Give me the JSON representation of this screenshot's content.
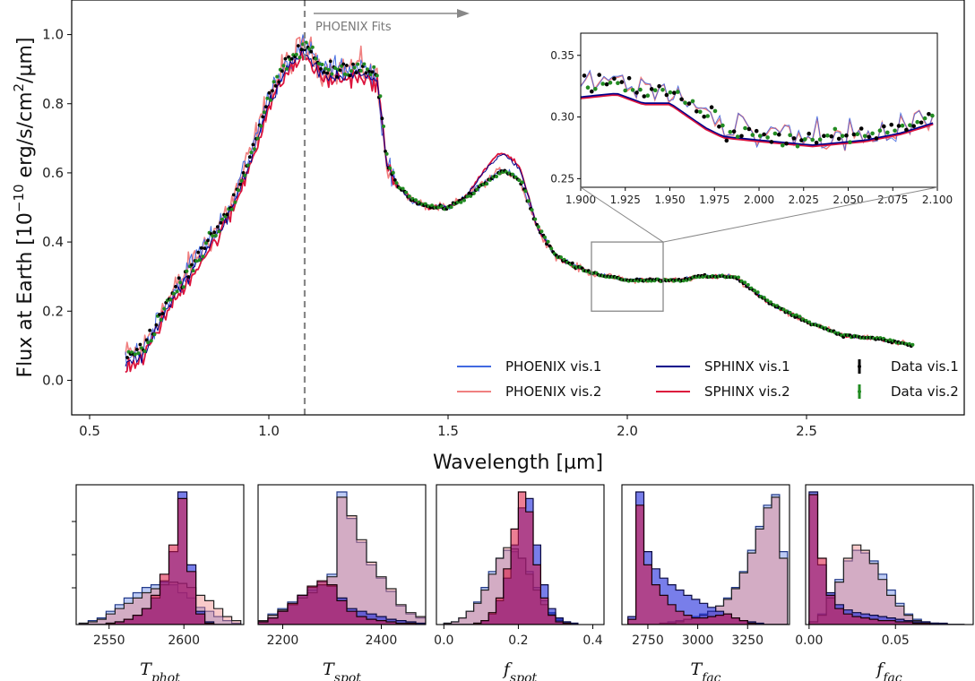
{
  "chart_data": [
    {
      "type": "line",
      "xlabel": "Wavelength [µm]",
      "ylabel_parts": [
        "Flux at Earth [10",
        "−10",
        " erg/s/cm",
        "2",
        "/µm]"
      ],
      "xlim": [
        0.45,
        2.94
      ],
      "ylim": [
        -0.1,
        1.1
      ],
      "xticks": [
        0.5,
        1.0,
        1.5,
        2.0,
        2.5
      ],
      "xtick_labels": [
        "0.5",
        "1.0",
        "1.5",
        "2.0",
        "2.5"
      ],
      "yticks": [
        0.0,
        0.2,
        0.4,
        0.6,
        0.8,
        1.0
      ],
      "ytick_labels": [
        "0.0",
        "0.2",
        "0.4",
        "0.6",
        "0.8",
        "1.0"
      ],
      "annotation": {
        "text": "PHOENIX Fits",
        "x": 1.1
      },
      "legend_position": "lower-right",
      "grid": false,
      "series": [
        {
          "name": "PHOENIX vis.1",
          "color": "#4169e1",
          "style": "line"
        },
        {
          "name": "PHOENIX vis.2",
          "color": "#f08080",
          "style": "line"
        },
        {
          "name": "SPHINX vis.1",
          "color": "#00008b",
          "style": "line"
        },
        {
          "name": "SPHINX vis.2",
          "color": "#dc143c",
          "style": "line"
        },
        {
          "name": "Data vis.1",
          "color": "#000000",
          "style": "errorbar"
        },
        {
          "name": "Data vis.2",
          "color": "#228b22",
          "style": "errorbar"
        }
      ],
      "spectrum_x": [
        0.6,
        0.65,
        0.7,
        0.75,
        0.8,
        0.85,
        0.9,
        0.95,
        1.0,
        1.05,
        1.1,
        1.15,
        1.2,
        1.25,
        1.3,
        1.33,
        1.36,
        1.4,
        1.45,
        1.5,
        1.55,
        1.6,
        1.65,
        1.7,
        1.75,
        1.8,
        1.85,
        1.9,
        1.95,
        2.0,
        2.05,
        2.1,
        2.15,
        2.2,
        2.25,
        2.3,
        2.4,
        2.5,
        2.6,
        2.7,
        2.8
      ],
      "spectrum_y": [
        0.07,
        0.09,
        0.2,
        0.28,
        0.36,
        0.43,
        0.52,
        0.66,
        0.82,
        0.92,
        0.97,
        0.9,
        0.9,
        0.91,
        0.88,
        0.62,
        0.56,
        0.52,
        0.5,
        0.5,
        0.53,
        0.57,
        0.61,
        0.58,
        0.44,
        0.36,
        0.33,
        0.31,
        0.3,
        0.29,
        0.29,
        0.29,
        0.29,
        0.3,
        0.3,
        0.3,
        0.22,
        0.17,
        0.13,
        0.12,
        0.1
      ],
      "inset": {
        "xlim": [
          1.9,
          2.1
        ],
        "ylim": [
          0.243,
          0.368
        ],
        "xticks": [
          1.9,
          1.925,
          1.95,
          1.975,
          2.0,
          2.025,
          2.05,
          2.075,
          2.1
        ],
        "xtick_labels": [
          "1.900",
          "1.925",
          "1.950",
          "1.975",
          "2.000",
          "2.025",
          "2.050",
          "2.075",
          "2.100"
        ],
        "yticks": [
          0.25,
          0.3,
          0.35
        ],
        "ytick_labels": [
          "0.25",
          "0.30",
          "0.35"
        ],
        "sphinx_x": [
          1.9,
          1.92,
          1.935,
          1.95,
          1.97,
          1.98,
          2.0,
          2.03,
          2.06,
          2.08,
          2.1
        ],
        "sphinx_y": [
          0.315,
          0.318,
          0.31,
          0.31,
          0.29,
          0.283,
          0.28,
          0.276,
          0.28,
          0.286,
          0.295
        ]
      }
    },
    {
      "type": "histogram",
      "panels": [
        {
          "xlabel_base": "T",
          "xlabel_sub": "phot",
          "xlim": [
            2528,
            2640
          ],
          "xticks": [
            2550,
            2600
          ],
          "xtick_labels": [
            "2550",
            "2600"
          ],
          "bins": [
            2530,
            2536,
            2542,
            2548,
            2554,
            2560,
            2566,
            2572,
            2578,
            2584,
            2590,
            2596,
            2602,
            2608,
            2614,
            2620,
            2626,
            2632,
            2638
          ],
          "series": [
            {
              "name": "PHOENIX vis.1",
              "counts": [
                0.01,
                0.03,
                0.05,
                0.1,
                0.15,
                0.2,
                0.24,
                0.28,
                0.3,
                0.32,
                0.3,
                0.24,
                0.2,
                0.13,
                0.1,
                0.06,
                0.03,
                0.01
              ]
            },
            {
              "name": "PHOENIX vis.2",
              "counts": [
                0.01,
                0.02,
                0.04,
                0.08,
                0.12,
                0.16,
                0.2,
                0.24,
                0.27,
                0.3,
                0.32,
                0.31,
                0.28,
                0.22,
                0.18,
                0.12,
                0.06,
                0.03
              ]
            },
            {
              "name": "SPHINX vis.1",
              "counts": [
                0,
                0,
                0,
                0.01,
                0.02,
                0.04,
                0.07,
                0.12,
                0.2,
                0.33,
                0.55,
                1.0,
                0.45,
                0.1,
                0.02,
                0,
                0,
                0
              ]
            },
            {
              "name": "SPHINX vis.2",
              "counts": [
                0,
                0,
                0,
                0.01,
                0.02,
                0.04,
                0.07,
                0.12,
                0.22,
                0.38,
                0.6,
                0.95,
                0.4,
                0.08,
                0.01,
                0,
                0,
                0
              ]
            }
          ]
        },
        {
          "xlabel_base": "T",
          "xlabel_sub": "spot",
          "xlim": [
            2150,
            2490
          ],
          "xticks": [
            2200,
            2400
          ],
          "xtick_labels": [
            "2200",
            "2400"
          ],
          "bins": [
            2150,
            2170,
            2190,
            2210,
            2230,
            2250,
            2270,
            2290,
            2310,
            2330,
            2350,
            2370,
            2390,
            2410,
            2430,
            2450,
            2470,
            2490
          ],
          "series": [
            {
              "name": "PHOENIX vis.1",
              "counts": [
                0.03,
                0.08,
                0.12,
                0.17,
                0.22,
                0.26,
                0.32,
                0.38,
                1.0,
                0.8,
                0.62,
                0.45,
                0.35,
                0.25,
                0.14,
                0.08,
                0.05
              ]
            },
            {
              "name": "PHOENIX vis.2",
              "counts": [
                0.03,
                0.07,
                0.11,
                0.15,
                0.2,
                0.24,
                0.3,
                0.36,
                0.96,
                0.82,
                0.64,
                0.47,
                0.36,
                0.27,
                0.15,
                0.09,
                0.06
              ]
            },
            {
              "name": "SPHINX vis.1",
              "counts": [
                0.02,
                0.05,
                0.1,
                0.15,
                0.22,
                0.28,
                0.3,
                0.29,
                0.2,
                0.12,
                0.1,
                0.08,
                0.06,
                0.04,
                0.03,
                0.02,
                0.01
              ]
            },
            {
              "name": "SPHINX vis.2",
              "counts": [
                0.02,
                0.05,
                0.1,
                0.16,
                0.22,
                0.29,
                0.33,
                0.3,
                0.18,
                0.1,
                0.06,
                0.04,
                0.03,
                0.02,
                0.01,
                0.01,
                0
              ]
            }
          ]
        },
        {
          "xlabel_base": "f",
          "xlabel_sub": "spot",
          "xlim": [
            -0.02,
            0.43
          ],
          "xticks": [
            0.0,
            0.2,
            0.4
          ],
          "xtick_labels": [
            "0.0",
            "0.2",
            "0.4"
          ],
          "bins": [
            0.0,
            0.02,
            0.04,
            0.06,
            0.08,
            0.1,
            0.12,
            0.14,
            0.16,
            0.18,
            0.2,
            0.22,
            0.24,
            0.26,
            0.28,
            0.3,
            0.32,
            0.34,
            0.36
          ],
          "series": [
            {
              "name": "PHOENIX vis.1",
              "counts": [
                0.01,
                0.02,
                0.05,
                0.1,
                0.17,
                0.28,
                0.4,
                0.5,
                0.56,
                0.55,
                0.5,
                0.4,
                0.28,
                0.18,
                0.09,
                0.04,
                0.02,
                0.01
              ]
            },
            {
              "name": "PHOENIX vis.2",
              "counts": [
                0.01,
                0.02,
                0.05,
                0.1,
                0.16,
                0.26,
                0.38,
                0.5,
                0.58,
                0.57,
                0.5,
                0.38,
                0.26,
                0.15,
                0.08,
                0.03,
                0.01,
                0
              ]
            },
            {
              "name": "SPHINX vis.1",
              "counts": [
                0,
                0,
                0,
                0,
                0.01,
                0.03,
                0.08,
                0.18,
                0.35,
                0.6,
                0.88,
                0.95,
                0.6,
                0.3,
                0.12,
                0.05,
                0.02,
                0.01
              ]
            },
            {
              "name": "SPHINX vis.2",
              "counts": [
                0,
                0,
                0,
                0,
                0.01,
                0.03,
                0.09,
                0.2,
                0.42,
                0.72,
                1.0,
                0.85,
                0.45,
                0.2,
                0.07,
                0.02,
                0.01,
                0
              ]
            }
          ]
        },
        {
          "xlabel_base": "T",
          "xlabel_sub": "fac",
          "xlim": [
            2620,
            3460
          ],
          "xticks": [
            2750,
            3000,
            3250
          ],
          "xtick_labels": [
            "2750",
            "3000",
            "3250"
          ],
          "bins": [
            2650,
            2690,
            2730,
            2770,
            2810,
            2850,
            2890,
            2930,
            2970,
            3010,
            3050,
            3090,
            3130,
            3170,
            3210,
            3250,
            3290,
            3330,
            3370,
            3410,
            3450
          ],
          "series": [
            {
              "name": "PHOENIX vis.1",
              "counts": [
                0,
                0,
                0,
                0,
                0.01,
                0.02,
                0.03,
                0.04,
                0.06,
                0.08,
                0.1,
                0.14,
                0.2,
                0.28,
                0.4,
                0.56,
                0.74,
                0.9,
                0.98,
                0.55
              ]
            },
            {
              "name": "PHOENIX vis.2",
              "counts": [
                0,
                0,
                0,
                0,
                0.01,
                0.01,
                0.02,
                0.04,
                0.05,
                0.07,
                0.1,
                0.14,
                0.19,
                0.27,
                0.39,
                0.54,
                0.72,
                0.88,
                0.96,
                0.5
              ]
            },
            {
              "name": "SPHINX vis.1",
              "counts": [
                0.06,
                1.0,
                0.55,
                0.42,
                0.35,
                0.3,
                0.26,
                0.22,
                0.19,
                0.16,
                0.13,
                0.1,
                0.08,
                0.05,
                0.03,
                0.02,
                0.01,
                0,
                0,
                0
              ]
            },
            {
              "name": "SPHINX vis.2",
              "counts": [
                0.04,
                0.9,
                0.45,
                0.3,
                0.22,
                0.15,
                0.1,
                0.07,
                0.05,
                0.05,
                0.06,
                0.07,
                0.08,
                0.05,
                0.03,
                0.01,
                0,
                0,
                0,
                0
              ]
            }
          ]
        },
        {
          "xlabel_base": "f",
          "xlabel_sub": "fac",
          "xlim": [
            -0.002,
            0.095
          ],
          "xticks": [
            0.0,
            0.05
          ],
          "xtick_labels": [
            "0.00",
            "0.05"
          ],
          "bins": [
            0.0,
            0.005,
            0.01,
            0.015,
            0.02,
            0.025,
            0.03,
            0.035,
            0.04,
            0.045,
            0.05,
            0.055,
            0.06,
            0.065,
            0.07,
            0.075,
            0.08,
            0.085,
            0.09
          ],
          "series": [
            {
              "name": "PHOENIX vis.1",
              "counts": [
                0.02,
                0.08,
                0.22,
                0.34,
                0.48,
                0.56,
                0.54,
                0.48,
                0.38,
                0.26,
                0.16,
                0.08,
                0.04,
                0.02,
                0.01,
                0,
                0,
                0
              ]
            },
            {
              "name": "PHOENIX vis.2",
              "counts": [
                0.02,
                0.07,
                0.2,
                0.32,
                0.5,
                0.6,
                0.56,
                0.46,
                0.34,
                0.22,
                0.14,
                0.07,
                0.03,
                0.01,
                0.01,
                0,
                0,
                0
              ]
            },
            {
              "name": "SPHINX vis.1",
              "counts": [
                1.0,
                0.45,
                0.24,
                0.15,
                0.11,
                0.09,
                0.08,
                0.07,
                0.06,
                0.05,
                0.04,
                0.03,
                0.02,
                0.02,
                0.01,
                0.01,
                0,
                0
              ]
            },
            {
              "name": "SPHINX vis.2",
              "counts": [
                0.98,
                0.5,
                0.22,
                0.12,
                0.08,
                0.06,
                0.05,
                0.04,
                0.03,
                0.03,
                0.02,
                0.02,
                0.01,
                0.01,
                0,
                0,
                0,
                0
              ]
            }
          ]
        }
      ]
    }
  ]
}
